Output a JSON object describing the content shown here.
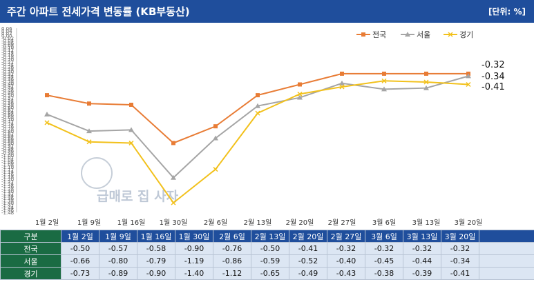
{
  "header": {
    "title": "주간 아파트 전세가격 변동률 (KB부동산)",
    "unit": "[단위: %]"
  },
  "watermark": "급매로 집 사자",
  "colors": {
    "전국": "#e87c35",
    "서울": "#a5a5a5",
    "경기": "#f2c11c",
    "header_bg": "#1f4e9c",
    "label_bg": "#1a6b43"
  },
  "chart_data": {
    "type": "line",
    "categories": [
      "1월 2일",
      "1월 9일",
      "1월 16일",
      "1월 30일",
      "2월 6일",
      "2월 13일",
      "2월 20일",
      "2월 27일",
      "3월 6일",
      "3월 13일",
      "3월 20일"
    ],
    "series": [
      {
        "name": "전국",
        "marker": "square",
        "values": [
          -0.5,
          -0.57,
          -0.58,
          -0.9,
          -0.76,
          -0.5,
          -0.41,
          -0.32,
          -0.32,
          -0.32,
          -0.32
        ]
      },
      {
        "name": "서울",
        "marker": "triangle",
        "values": [
          -0.66,
          -0.8,
          -0.79,
          -1.19,
          -0.86,
          -0.59,
          -0.52,
          -0.4,
          -0.45,
          -0.44,
          -0.34
        ]
      },
      {
        "name": "경기",
        "marker": "x",
        "values": [
          -0.73,
          -0.89,
          -0.9,
          -1.4,
          -1.12,
          -0.65,
          -0.49,
          -0.43,
          -0.38,
          -0.39,
          -0.41
        ]
      }
    ],
    "ylim": [
      -1.48,
      0.06
    ],
    "end_labels": [
      "-0.32",
      "-0.34",
      "-0.41"
    ],
    "legend": "top-right",
    "grid": false
  },
  "table": {
    "corner": "구분",
    "rows": [
      {
        "label": "전국",
        "values": [
          "-0.50",
          "-0.57",
          "-0.58",
          "-0.90",
          "-0.76",
          "-0.50",
          "-0.41",
          "-0.32",
          "-0.32",
          "-0.32",
          "-0.32"
        ]
      },
      {
        "label": "서울",
        "values": [
          "-0.66",
          "-0.80",
          "-0.79",
          "-1.19",
          "-0.86",
          "-0.59",
          "-0.52",
          "-0.40",
          "-0.45",
          "-0.44",
          "-0.34"
        ]
      },
      {
        "label": "경기",
        "values": [
          "-0.73",
          "-0.89",
          "-0.90",
          "-1.40",
          "-1.12",
          "-0.65",
          "-0.49",
          "-0.43",
          "-0.38",
          "-0.39",
          "-0.41"
        ]
      }
    ]
  }
}
